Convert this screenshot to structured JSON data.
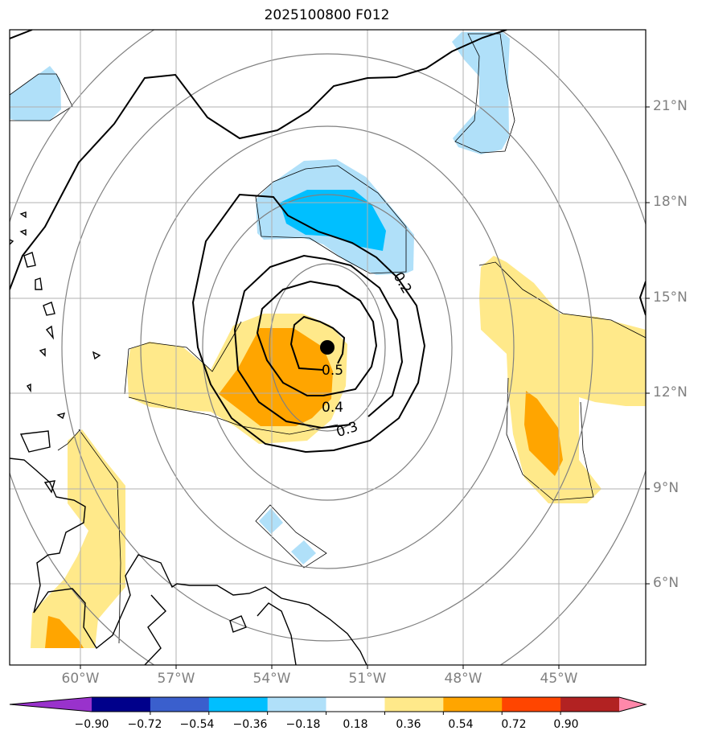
{
  "title": "2025100800 F012",
  "lat_labels": [
    "21°N",
    "18°N",
    "15°N",
    "12°N",
    "9°N",
    "6°N"
  ],
  "lon_labels": [
    "60°W",
    "57°W",
    "54°W",
    "51°W",
    "48°W",
    "45°W"
  ],
  "contour_labels": [
    "0.2",
    "0.3",
    "0.4",
    "0.5"
  ],
  "colorbar": {
    "ticks": [
      "−0.90",
      "−0.72",
      "−0.54",
      "−0.36",
      "−0.18",
      "0.18",
      "0.36",
      "0.54",
      "0.72",
      "0.90"
    ],
    "colors": [
      "#9932cc",
      "#00008b",
      "#3a5fcd",
      "#00bfff",
      "#b0e0f9",
      "#ffffff",
      "#ffe98a",
      "#ffa500",
      "#ff4500",
      "#b22222",
      "#ff88aa"
    ]
  },
  "colors": {
    "light_blue": "#b0e0f9",
    "deep_sky_blue": "#00bfff",
    "light_yellow": "#ffe98a",
    "orange": "#ffa500"
  }
}
